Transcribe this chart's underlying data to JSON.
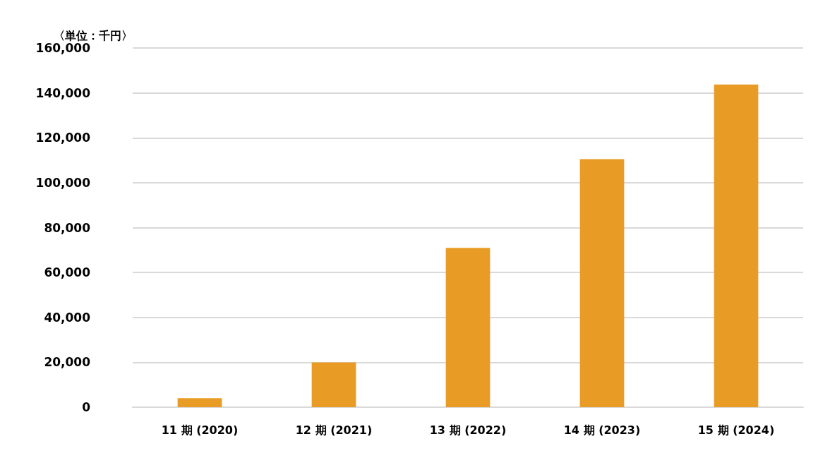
{
  "chart_data": {
    "type": "bar",
    "ylabel": "〈単位：千円〉",
    "categories": [
      "11 期 (2020)",
      "12 期 (2021)",
      "13 期 (2022)",
      "14 期 (2023)",
      "15 期 (2024)"
    ],
    "values": [
      4000,
      20000,
      71000,
      110500,
      143700
    ],
    "color": "#e99c25",
    "ylim": [
      0,
      160000
    ],
    "yticks": [
      0,
      {
        "value": 20000,
        "label": "20,000"
      },
      {
        "value": 40000,
        "label": "40,000"
      },
      {
        "value": 60000,
        "label": "60,000"
      },
      {
        "value": 80000,
        "label": "80,000"
      },
      {
        "value": 100000,
        "label": "100,000"
      },
      {
        "value": 120000,
        "label": "120,000"
      },
      {
        "value": 140000,
        "label": "140,000"
      },
      {
        "value": 160000,
        "label": "160,000"
      }
    ],
    "grid": "y"
  }
}
